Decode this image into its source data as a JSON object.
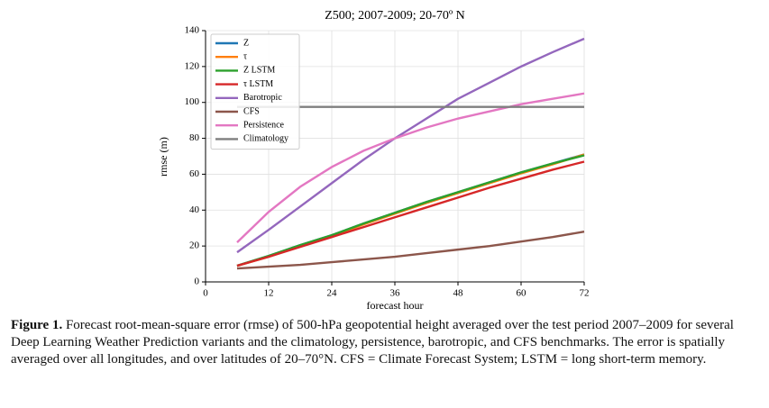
{
  "chart_data": {
    "type": "line",
    "title": "Z500; 2007-2009; 20-70º N",
    "xlabel": "forecast hour",
    "ylabel": "rmse (m)",
    "x": [
      6,
      12,
      18,
      24,
      30,
      36,
      42,
      48,
      54,
      60,
      66,
      72
    ],
    "series": [
      {
        "name": "Z",
        "color": "#1f77b4",
        "values": [
          9,
          14.5,
          20.5,
          26,
          32.5,
          38.5,
          44.5,
          50,
          55.5,
          61,
          66,
          71
        ]
      },
      {
        "name": "τ",
        "color": "#ff7f0e",
        "values": [
          9,
          14,
          20,
          25.5,
          32,
          38,
          44,
          49.5,
          55,
          60.5,
          65.5,
          71
        ]
      },
      {
        "name": "Z LSTM",
        "color": "#2ca02c",
        "values": [
          9,
          14.5,
          20.5,
          26,
          32.5,
          38.5,
          44.5,
          50,
          55.5,
          61,
          66,
          70.5
        ]
      },
      {
        "name": "τ LSTM",
        "color": "#d62728",
        "values": [
          9,
          14,
          19.5,
          25,
          30.5,
          36,
          41.5,
          47,
          52.5,
          57.5,
          62.5,
          67
        ]
      },
      {
        "name": "Barotropic",
        "color": "#9467bd",
        "values": [
          16.5,
          29,
          42,
          55,
          68,
          80,
          91,
          102,
          111,
          120,
          128,
          135.5
        ]
      },
      {
        "name": "CFS",
        "color": "#8c564b",
        "values": [
          7.5,
          8.5,
          9.5,
          11,
          12.5,
          14,
          16,
          18,
          20,
          22.5,
          25,
          28
        ]
      },
      {
        "name": "Persistence",
        "color": "#e377c2",
        "values": [
          22,
          39,
          53,
          64,
          73,
          80,
          86,
          91,
          95,
          99,
          102,
          105
        ]
      },
      {
        "name": "Climatology",
        "color": "#7f7f7f",
        "values": [
          97.5,
          97.5,
          97.5,
          97.5,
          97.5,
          97.5,
          97.5,
          97.5,
          97.5,
          97.5,
          97.5,
          97.5
        ]
      }
    ],
    "xlim": [
      0,
      72
    ],
    "xticks": [
      0,
      12,
      24,
      36,
      48,
      60,
      72
    ],
    "ylim": [
      0,
      140
    ],
    "yticks": [
      0,
      20,
      40,
      60,
      80,
      100,
      120,
      140
    ],
    "grid": true,
    "legend": "upper left"
  },
  "caption": {
    "label": "Figure 1.",
    "text": "Forecast root-mean-square error (rmse) of 500-hPa geopotential height averaged over the test period 2007–2009 for several Deep Learning Weather Prediction variants and the climatology, persistence, barotropic, and CFS benchmarks. The error is spatially averaged over all longitudes, and over latitudes of 20–70°N. CFS = Climate Forecast System; LSTM = long short-term memory."
  }
}
